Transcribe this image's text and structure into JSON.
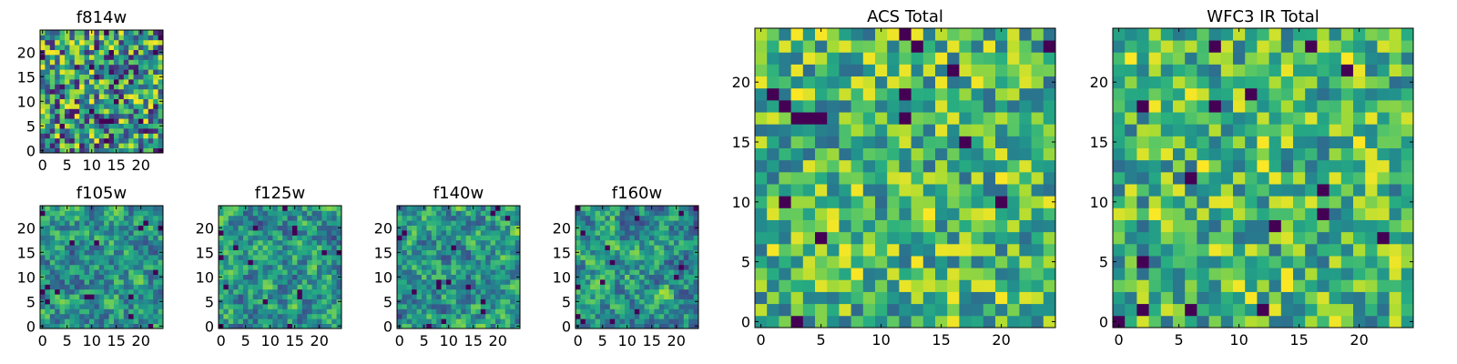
{
  "figure": {
    "background": "#ffffff",
    "colormap": "viridis"
  },
  "chart_data": [
    {
      "type": "heatmap",
      "title": "f814w",
      "size": 25,
      "xticks": [
        0,
        5,
        10,
        15,
        20
      ],
      "yticks": [
        0,
        5,
        10,
        15,
        20
      ],
      "smooth": 0,
      "seed": 11,
      "low": 0.05,
      "high": 1.0
    },
    {
      "type": "heatmap",
      "title": "f105w",
      "size": 25,
      "xticks": [
        0,
        5,
        10,
        15,
        20
      ],
      "yticks": [
        0,
        5,
        10,
        15,
        20
      ],
      "smooth": 1,
      "seed": 23,
      "low": 0.05,
      "high": 1.0
    },
    {
      "type": "heatmap",
      "title": "f125w",
      "size": 25,
      "xticks": [
        0,
        5,
        10,
        15,
        20
      ],
      "yticks": [
        0,
        5,
        10,
        15,
        20
      ],
      "smooth": 1,
      "seed": 37,
      "low": 0.05,
      "high": 1.0
    },
    {
      "type": "heatmap",
      "title": "f140w",
      "size": 25,
      "xticks": [
        0,
        5,
        10,
        15,
        20
      ],
      "yticks": [
        0,
        5,
        10,
        15,
        20
      ],
      "smooth": 1,
      "seed": 41,
      "low": 0.05,
      "high": 1.0
    },
    {
      "type": "heatmap",
      "title": "f160w",
      "size": 25,
      "xticks": [
        0,
        5,
        10,
        15,
        20
      ],
      "yticks": [
        0,
        5,
        10,
        15,
        20
      ],
      "smooth": 1,
      "seed": 53,
      "low": 0.05,
      "high": 1.0
    },
    {
      "type": "heatmap",
      "title": "ACS Total",
      "size": 25,
      "xticks": [
        0,
        5,
        10,
        15,
        20
      ],
      "yticks": [
        0,
        5,
        10,
        15,
        20
      ],
      "smooth": 0,
      "seed": 67,
      "low": 0.35,
      "high": 1.0
    },
    {
      "type": "heatmap",
      "title": "WFC3 IR Total",
      "size": 25,
      "xticks": [
        0,
        5,
        10,
        15,
        20
      ],
      "yticks": [
        0,
        5,
        10,
        15,
        20
      ],
      "smooth": 0,
      "seed": 79,
      "low": 0.35,
      "high": 1.0
    }
  ]
}
